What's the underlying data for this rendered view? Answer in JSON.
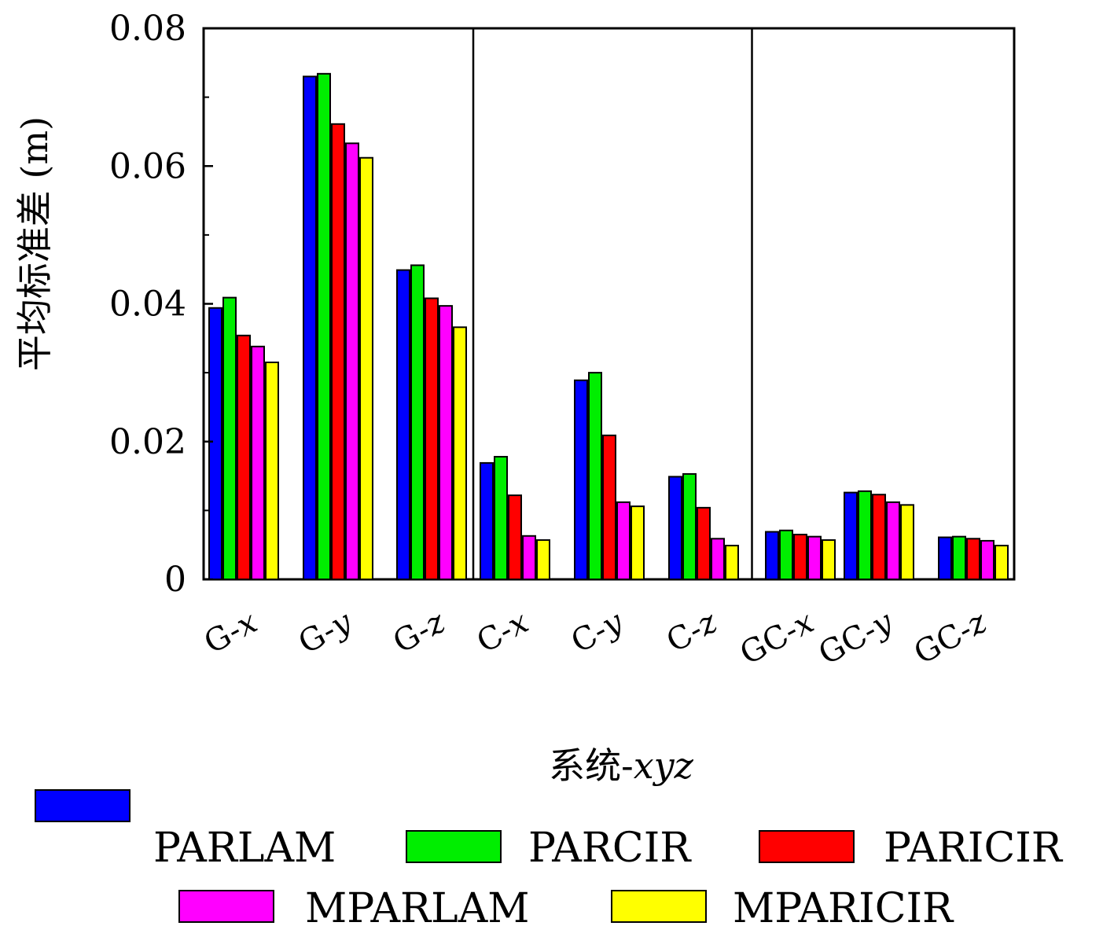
{
  "chart_data": {
    "type": "bar",
    "xlabel_prefix": "系统-",
    "xlabel_italic": "xyz",
    "ylabel": "平均标准差 (m)",
    "ylim": [
      0,
      0.08
    ],
    "yticks": [
      "0",
      "0.02",
      "0.04",
      "0.06",
      "0.08"
    ],
    "categories": [
      {
        "prefix": "G-",
        "axis": "x"
      },
      {
        "prefix": "G-",
        "axis": "y"
      },
      {
        "prefix": "G-",
        "axis": "z"
      },
      {
        "prefix": "C-",
        "axis": "x"
      },
      {
        "prefix": "C-",
        "axis": "y"
      },
      {
        "prefix": "C-",
        "axis": "z"
      },
      {
        "prefix": "GC-",
        "axis": "x"
      },
      {
        "prefix": "GC-",
        "axis": "y"
      },
      {
        "prefix": "GC-",
        "axis": "z"
      }
    ],
    "series": [
      {
        "name": "PARLAM",
        "color": "#0000ff",
        "values": [
          0.0394,
          0.073,
          0.0449,
          0.0169,
          0.0289,
          0.0149,
          0.0069,
          0.0126,
          0.0061
        ]
      },
      {
        "name": "PARCIR",
        "color": "#00ee00",
        "values": [
          0.0409,
          0.0734,
          0.0456,
          0.0178,
          0.03,
          0.0153,
          0.0071,
          0.0128,
          0.0062
        ]
      },
      {
        "name": "PARICIR",
        "color": "#ff0000",
        "values": [
          0.0354,
          0.0661,
          0.0408,
          0.0122,
          0.0209,
          0.0104,
          0.0065,
          0.0123,
          0.0059
        ]
      },
      {
        "name": "MPARLAM",
        "color": "#ff00ff",
        "values": [
          0.0338,
          0.0633,
          0.0397,
          0.0063,
          0.0112,
          0.0059,
          0.0062,
          0.0112,
          0.0056
        ]
      },
      {
        "name": "MPARICIR",
        "color": "#ffff00",
        "values": [
          0.0315,
          0.0612,
          0.0366,
          0.0057,
          0.0106,
          0.0049,
          0.0057,
          0.0108,
          0.0049
        ]
      }
    ],
    "group_dividers_after": [
      3,
      6
    ],
    "legend_position": "bottom"
  }
}
